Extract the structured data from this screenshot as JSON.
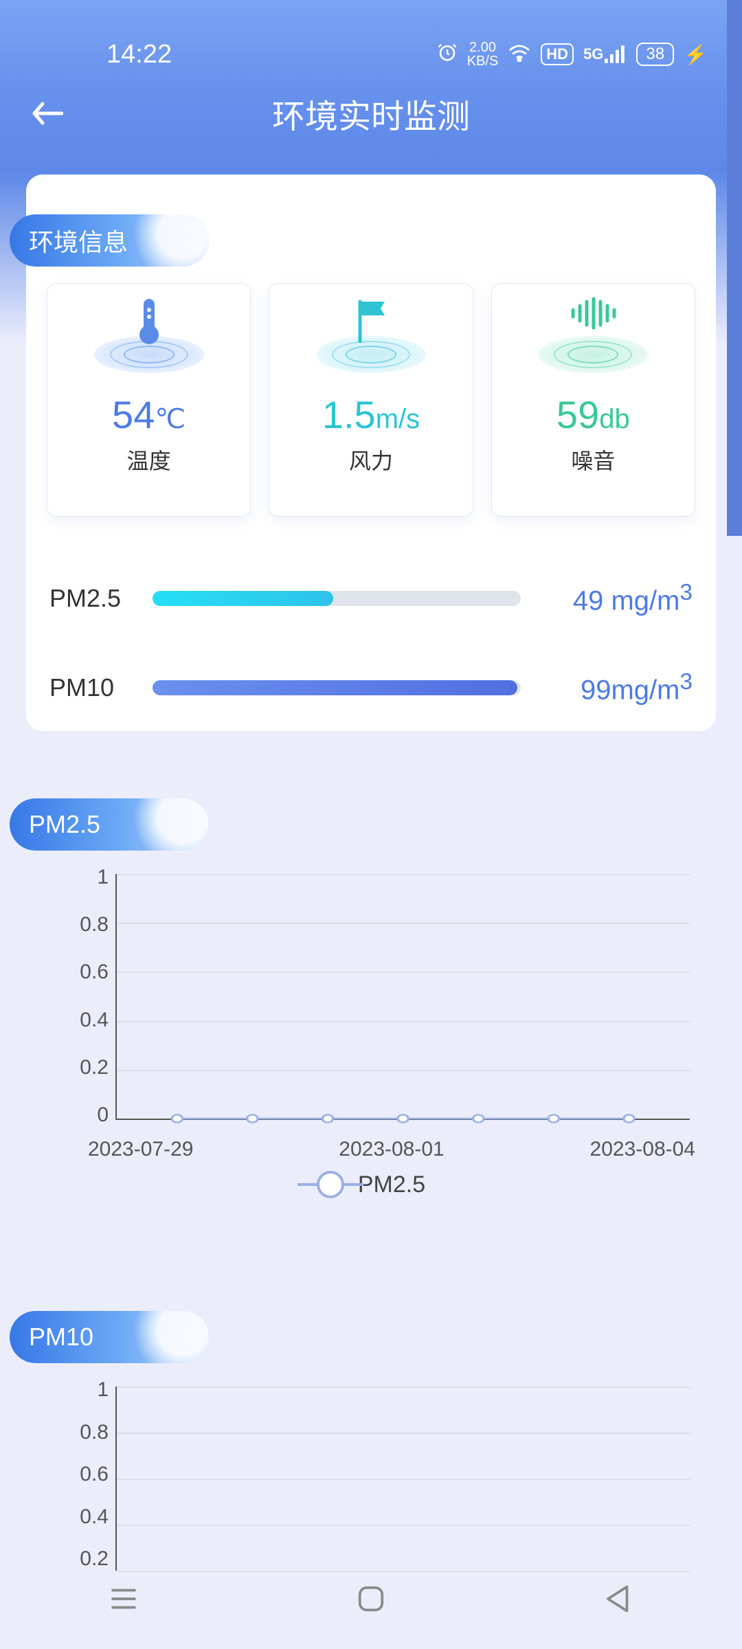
{
  "status": {
    "time": "14:22",
    "net_speed_top": "2.00",
    "net_speed_bottom": "KB/S",
    "hd": "HD",
    "signal": "5G",
    "battery": "38"
  },
  "header": {
    "title": "环境实时监测"
  },
  "sections": {
    "env": "环境信息",
    "pm25": "PM2.5",
    "pm10": "PM10"
  },
  "metrics": {
    "temp": {
      "value": "54",
      "unit": "℃",
      "label": "温度",
      "color": "#4d7be4"
    },
    "wind": {
      "value": "1.5",
      "unit": "m/s",
      "label": "风力",
      "color": "#29c5d4"
    },
    "noise": {
      "value": "59",
      "unit": "db",
      "label": "噪音",
      "color": "#38c89a"
    }
  },
  "pm": {
    "pm25": {
      "label": "PM2.5",
      "value": "49 mg/m",
      "unit_sup": "3",
      "percent": 49,
      "bar_color_start": "#25dff5",
      "bar_color_end": "#2ec2ea"
    },
    "pm10": {
      "label": "PM10",
      "value": "99mg/m",
      "unit_sup": "3",
      "percent": 99,
      "bar_color_start": "#6b90ee",
      "bar_color_end": "#506fe2"
    }
  },
  "chart_pm25": {
    "type": "line",
    "ylabels": [
      "1",
      "0.8",
      "0.6",
      "0.4",
      "0.2",
      "0"
    ],
    "ylim": [
      0,
      1
    ],
    "xlabels": [
      "2023-07-29",
      "2023-08-01",
      "2023-08-04"
    ],
    "n_points": 7,
    "values": [
      0,
      0,
      0,
      0,
      0,
      0,
      0
    ],
    "line_color": "#9bb0e6",
    "marker_border": "#9bb0e6",
    "marker_fill": "#ffffff",
    "grid_color": "#dcdfe8",
    "axis_color": "#555555",
    "legend_label": "PM2.5",
    "label_fontsize": 30
  },
  "chart_pm10": {
    "type": "line",
    "ylabels": [
      "1",
      "0.8",
      "0.6",
      "0.4",
      "0.2"
    ],
    "ylim": [
      0,
      1
    ],
    "line_color": "#9bb0e6",
    "grid_color": "#dcdfe8",
    "axis_color": "#555555",
    "label_fontsize": 30
  },
  "colors": {
    "bg": "#ebedfb",
    "header_grad_start": "#7aa4f2",
    "header_grad_end": "#5d88e8",
    "card_bg": "#ffffff",
    "text": "#333333"
  }
}
